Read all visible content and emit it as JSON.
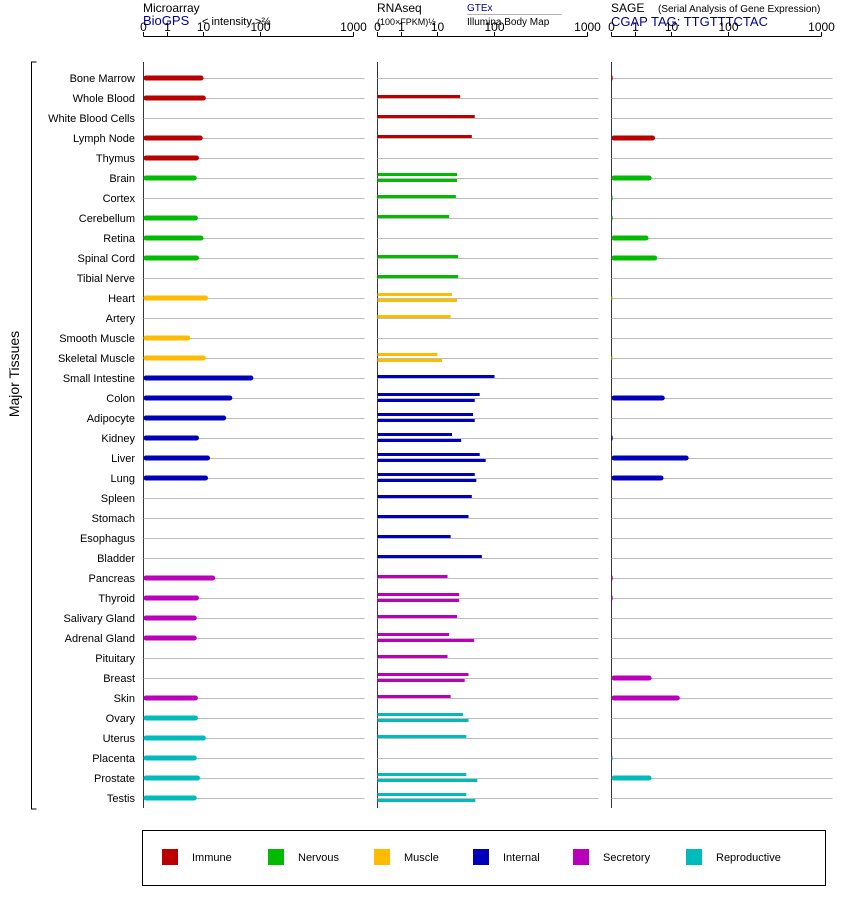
{
  "chart_data": {
    "type": "bar",
    "ylabel": "Major Tissues",
    "tissues": [
      "Bone Marrow",
      "Whole Blood",
      "White Blood Cells",
      "Lymph Node",
      "Thymus",
      "Brain",
      "Cortex",
      "Cerebellum",
      "Retina",
      "Spinal Cord",
      "Tibial Nerve",
      "Heart",
      "Artery",
      "Smooth Muscle",
      "Skeletal Muscle",
      "Small Intestine",
      "Colon",
      "Adipocyte",
      "Kidney",
      "Liver",
      "Lung",
      "Spleen",
      "Stomach",
      "Esophagus",
      "Bladder",
      "Pancreas",
      "Thyroid",
      "Salivary Gland",
      "Adrenal Gland",
      "Pituitary",
      "Breast",
      "Skin",
      "Ovary",
      "Uterus",
      "Placenta",
      "Prostate",
      "Testis"
    ],
    "tissue_groups": [
      "Immune",
      "Immune",
      "Immune",
      "Immune",
      "Immune",
      "Nervous",
      "Nervous",
      "Nervous",
      "Nervous",
      "Nervous",
      "Nervous",
      "Muscle",
      "Muscle",
      "Muscle",
      "Muscle",
      "Internal",
      "Internal",
      "Internal",
      "Internal",
      "Internal",
      "Internal",
      "Internal",
      "Internal",
      "Internal",
      "Internal",
      "Secretory",
      "Secretory",
      "Secretory",
      "Secretory",
      "Secretory",
      "Secretory",
      "Secretory",
      "Reproductive",
      "Reproductive",
      "Reproductive",
      "Reproductive",
      "Reproductive"
    ],
    "legend": [
      {
        "name": "Immune",
        "color": "#bb0000"
      },
      {
        "name": "Nervous",
        "color": "#00bb00"
      },
      {
        "name": "Muscle",
        "color": "#ffbb00"
      },
      {
        "name": "Internal",
        "color": "#0000bb"
      },
      {
        "name": "Secretory",
        "color": "#bb00bb"
      },
      {
        "name": "Reproductive",
        "color": "#00bbbb"
      }
    ],
    "panels": [
      {
        "key": "microarray",
        "title": "Microarray",
        "source": "BioGPS",
        "source_note": "< intensity >⅔",
        "scale": "log",
        "ticks": [
          "0",
          "1",
          "10",
          "100",
          "1000"
        ],
        "tick_values": [
          0,
          1,
          10,
          100,
          1000
        ],
        "xlim": [
          0,
          1000
        ],
        "values": [
          [
            10
          ],
          [
            11
          ],
          [],
          [
            9.5
          ],
          [
            7.5
          ],
          [
            6.5
          ],
          [],
          [
            7
          ],
          [
            10
          ],
          [
            7.5
          ],
          [],
          [
            12
          ],
          [],
          [
            4.3
          ],
          [
            11
          ],
          [
            75
          ],
          [
            32
          ],
          [
            25
          ],
          [
            7.5
          ],
          [
            13
          ],
          [
            12
          ],
          [],
          [],
          [],
          [],
          [
            16
          ],
          [
            7.5
          ],
          [
            6.5
          ],
          [
            6.5
          ],
          [],
          [],
          [
            7
          ],
          [
            7
          ],
          [
            11
          ],
          [
            6.5
          ],
          [
            8
          ],
          [
            6.5
          ]
        ]
      },
      {
        "key": "rnaseq",
        "title": "RNAseq",
        "source_note": "(100×FPKM)½",
        "legend_top": "GTEx",
        "legend_bottom": "Illumina Body Map",
        "scale": "log",
        "ticks": [
          "0",
          "1",
          "10",
          "100",
          "1000"
        ],
        "tick_values": [
          0,
          1,
          10,
          100,
          1000
        ],
        "xlim": [
          0,
          1000
        ],
        "values": [
          [],
          [
            25
          ],
          [
            45
          ],
          [
            40
          ],
          [],
          [
            22,
            22
          ],
          [
            21
          ],
          [
            16
          ],
          [],
          [
            23
          ],
          [
            23
          ],
          [
            18,
            22
          ],
          [
            17
          ],
          [],
          [
            10,
            12
          ],
          [
            100
          ],
          [
            55,
            45
          ],
          [
            42,
            45
          ],
          [
            18,
            26
          ],
          [
            55,
            70
          ],
          [
            45,
            48
          ],
          [
            40
          ],
          [
            35
          ],
          [
            17
          ],
          [
            60
          ],
          [
            15
          ],
          [
            24,
            24
          ],
          [
            22
          ],
          [
            16,
            44
          ],
          [
            15
          ],
          [
            35,
            30
          ],
          [
            17
          ],
          [
            28,
            35
          ],
          [
            32
          ],
          [],
          [
            32,
            50
          ],
          [
            32,
            46
          ]
        ]
      },
      {
        "key": "sage",
        "title": "SAGE",
        "subtitle": "(Serial Analysis of Gene Expression)",
        "source": "CGAP TAG: TTGTTTCTAC",
        "scale": "log",
        "ticks": [
          "0",
          "1",
          "10",
          "100",
          "1000"
        ],
        "tick_values": [
          0,
          1,
          10,
          100,
          1000
        ],
        "xlim": [
          0,
          1000
        ],
        "values": [
          [
            0.05
          ],
          [],
          [],
          [
            3.5
          ],
          [],
          [
            2.8
          ],
          [
            0.03
          ],
          [
            0.03
          ],
          [
            2.3
          ],
          [
            4
          ],
          [],
          [
            0.02
          ],
          [],
          [],
          [
            0.02
          ],
          [],
          [
            6.5
          ],
          [],
          [
            0.04
          ],
          [
            20
          ],
          [
            6
          ],
          [],
          [],
          [],
          [],
          [
            0.03
          ],
          [
            0.03
          ],
          [],
          [],
          [],
          [
            2.8
          ],
          [
            14
          ],
          [],
          [],
          [
            0.02
          ],
          [
            2.8
          ],
          []
        ]
      }
    ]
  }
}
